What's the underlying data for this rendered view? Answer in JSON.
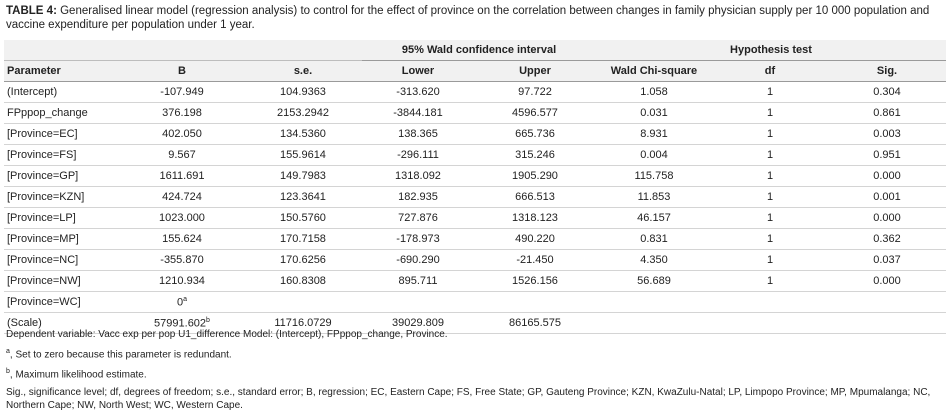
{
  "title": {
    "label": "TABLE 4:",
    "text": "Generalised linear model (regression analysis) to control for the effect of province on the correlation between changes in family physician supply per 10 000 population and vaccine expenditure per population under 1 year."
  },
  "table": {
    "column_groups": [
      "95% Wald confidence interval",
      "Hypothesis test"
    ],
    "columns": [
      "Parameter",
      "B",
      "s.e.",
      "Lower",
      "Upper",
      "Wald Chi-square",
      "df",
      "Sig."
    ],
    "rows": [
      [
        "(Intercept)",
        "-107.949",
        "104.9363",
        "-313.620",
        "97.722",
        "1.058",
        "1",
        "0.304"
      ],
      [
        "FPppop_change",
        "376.198",
        "2153.2942",
        "-3844.181",
        "4596.577",
        "0.031",
        "1",
        "0.861"
      ],
      [
        "[Province=EC]",
        "402.050",
        "134.5360",
        "138.365",
        "665.736",
        "8.931",
        "1",
        "0.003"
      ],
      [
        "[Province=FS]",
        "9.567",
        "155.9614",
        "-296.111",
        "315.246",
        "0.004",
        "1",
        "0.951"
      ],
      [
        "[Province=GP]",
        "1611.691",
        "149.7983",
        "1318.092",
        "1905.290",
        "115.758",
        "1",
        "0.000"
      ],
      [
        "[Province=KZN]",
        "424.724",
        "123.3641",
        "182.935",
        "666.513",
        "11.853",
        "1",
        "0.001"
      ],
      [
        "[Province=LP]",
        "1023.000",
        "150.5760",
        "727.876",
        "1318.123",
        "46.157",
        "1",
        "0.000"
      ],
      [
        "[Province=MP]",
        "155.624",
        "170.7158",
        "-178.973",
        "490.220",
        "0.831",
        "1",
        "0.362"
      ],
      [
        "[Province=NC]",
        "-355.870",
        "170.6256",
        "-690.290",
        "-21.450",
        "4.350",
        "1",
        "0.037"
      ],
      [
        "[Province=NW]",
        "1210.934",
        "160.8308",
        "895.711",
        "1526.156",
        "56.689",
        "1",
        "0.000"
      ],
      [
        "[Province=WC]",
        {
          "text": "0",
          "sup": "a"
        }
      ],
      [
        "(Scale)",
        {
          "text": "57991.602",
          "sup": "b"
        },
        "11716.0729",
        "39029.809",
        "86165.575"
      ]
    ]
  },
  "notes": [
    {
      "text": "Dependent variable: Vacc exp per pop U1_difference Model: (Intercept), FPppop_change, Province."
    },
    {
      "sup": "a",
      "text": ", Set to zero because this parameter is redundant."
    },
    {
      "sup": "b",
      "text": ", Maximum likelihood estimate."
    },
    {
      "text": "Sig., significance level; df, degrees of freedom; s.e., standard error; B, regression; EC, Eastern Cape; FS, Free State; GP, Gauteng Province; KZN, KwaZulu-Natal; LP, Limpopo Province; MP, Mpumalanga; NC, Northern Cape; NW, North West; WC, Western Cape."
    }
  ]
}
